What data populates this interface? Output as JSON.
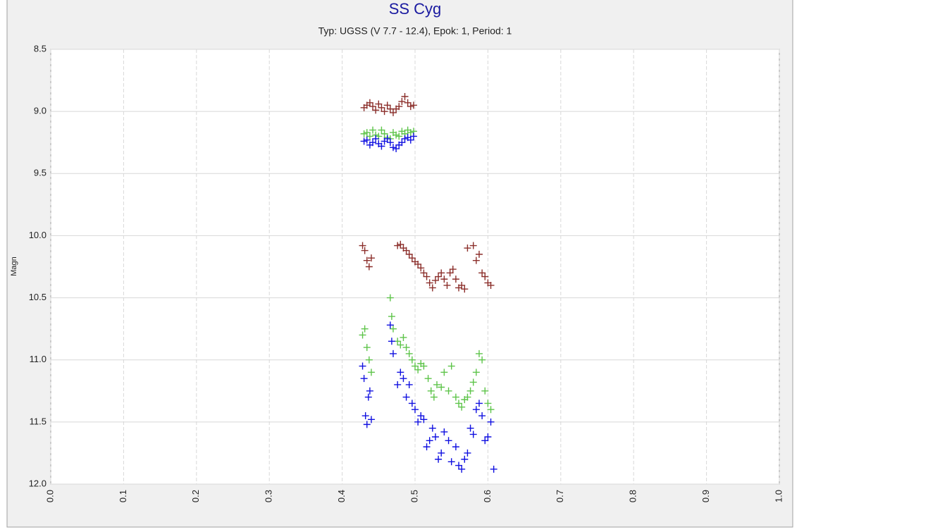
{
  "chart_data": {
    "type": "scatter",
    "title": "SS Cyg",
    "subtitle": "Typ: UGSS (V 7.7 - 12.4), Epok: 1, Period: 1",
    "y_label": "Magn",
    "xlim": [
      0,
      1
    ],
    "xticks": [
      {
        "value": 0,
        "label": "0.0"
      },
      0.1,
      0.2,
      0.3,
      0.4,
      0.5,
      0.6,
      0.7,
      0.8,
      0.9,
      {
        "value": 1,
        "label": "1.0"
      }
    ],
    "ylim": [
      12,
      8.5
    ],
    "yticks": [
      8.5,
      {
        "value": 9,
        "label": "9.0"
      },
      9.5,
      {
        "value": 10,
        "label": "10.0"
      },
      10.5,
      {
        "value": 11,
        "label": "11.0"
      },
      11.5,
      {
        "value": 12,
        "label": "12.0"
      }
    ],
    "grid": true,
    "marker": "plus",
    "series": [
      {
        "color": "#8b2e2a",
        "x": [
          0.43,
          0.434,
          0.438,
          0.442,
          0.446,
          0.45,
          0.454,
          0.458,
          0.462,
          0.466,
          0.47,
          0.474,
          0.478,
          0.482,
          0.486,
          0.49,
          0.494,
          0.498,
          0.428,
          0.431,
          0.434,
          0.437,
          0.44,
          0.476,
          0.48,
          0.484,
          0.488,
          0.492,
          0.496,
          0.5,
          0.504,
          0.508,
          0.512,
          0.516,
          0.52,
          0.524,
          0.528,
          0.532,
          0.536,
          0.54,
          0.544,
          0.548,
          0.552,
          0.556,
          0.56,
          0.564,
          0.568,
          0.572,
          0.58,
          0.584,
          0.588,
          0.592,
          0.596,
          0.6,
          0.604
        ],
        "values": [
          8.97,
          8.95,
          8.93,
          8.96,
          8.99,
          8.94,
          8.97,
          9.0,
          8.95,
          8.98,
          9.01,
          8.98,
          8.96,
          8.92,
          8.88,
          8.93,
          8.96,
          8.95,
          10.08,
          10.12,
          10.2,
          10.25,
          10.18,
          10.08,
          10.07,
          10.1,
          10.12,
          10.15,
          10.18,
          10.21,
          10.23,
          10.26,
          10.3,
          10.33,
          10.38,
          10.42,
          10.36,
          10.33,
          10.3,
          10.35,
          10.4,
          10.3,
          10.27,
          10.35,
          10.42,
          10.4,
          10.43,
          10.1,
          10.08,
          10.2,
          10.15,
          10.3,
          10.33,
          10.38,
          10.4
        ]
      },
      {
        "color": "#5ec44a",
        "x": [
          0.43,
          0.434,
          0.438,
          0.442,
          0.446,
          0.45,
          0.454,
          0.458,
          0.462,
          0.466,
          0.47,
          0.474,
          0.478,
          0.482,
          0.486,
          0.49,
          0.494,
          0.498,
          0.428,
          0.431,
          0.434,
          0.437,
          0.44,
          0.466,
          0.468,
          0.47,
          0.476,
          0.48,
          0.484,
          0.488,
          0.492,
          0.496,
          0.5,
          0.504,
          0.508,
          0.512,
          0.518,
          0.522,
          0.526,
          0.53,
          0.536,
          0.54,
          0.546,
          0.55,
          0.556,
          0.56,
          0.564,
          0.568,
          0.572,
          0.576,
          0.58,
          0.584,
          0.588,
          0.592,
          0.596,
          0.6,
          0.604
        ],
        "values": [
          9.18,
          9.17,
          9.2,
          9.15,
          9.19,
          9.2,
          9.15,
          9.18,
          9.21,
          9.22,
          9.17,
          9.19,
          9.2,
          9.16,
          9.18,
          9.15,
          9.17,
          9.16,
          10.8,
          10.75,
          10.9,
          11.0,
          11.1,
          10.5,
          10.65,
          10.75,
          10.85,
          10.88,
          10.82,
          10.9,
          10.95,
          11.0,
          11.05,
          11.08,
          11.03,
          11.05,
          11.15,
          11.25,
          11.3,
          11.2,
          11.22,
          11.1,
          11.25,
          11.05,
          11.3,
          11.35,
          11.38,
          11.32,
          11.3,
          11.25,
          11.18,
          11.1,
          10.95,
          11.0,
          11.25,
          11.35,
          11.4
        ]
      },
      {
        "color": "#1010e0",
        "x": [
          0.43,
          0.434,
          0.438,
          0.442,
          0.446,
          0.45,
          0.454,
          0.458,
          0.462,
          0.466,
          0.47,
          0.474,
          0.478,
          0.482,
          0.486,
          0.49,
          0.494,
          0.498,
          0.428,
          0.43,
          0.432,
          0.434,
          0.436,
          0.438,
          0.44,
          0.466,
          0.468,
          0.47,
          0.476,
          0.48,
          0.484,
          0.488,
          0.492,
          0.496,
          0.5,
          0.504,
          0.508,
          0.512,
          0.516,
          0.52,
          0.524,
          0.528,
          0.532,
          0.536,
          0.54,
          0.546,
          0.55,
          0.556,
          0.56,
          0.564,
          0.568,
          0.572,
          0.576,
          0.58,
          0.584,
          0.588,
          0.592,
          0.596,
          0.6,
          0.604,
          0.608
        ],
        "values": [
          9.24,
          9.23,
          9.27,
          9.25,
          9.22,
          9.26,
          9.28,
          9.24,
          9.22,
          9.25,
          9.29,
          9.3,
          9.27,
          9.25,
          9.22,
          9.21,
          9.23,
          9.2,
          11.05,
          11.15,
          11.45,
          11.52,
          11.3,
          11.25,
          11.48,
          10.72,
          10.85,
          10.95,
          11.2,
          11.1,
          11.15,
          11.3,
          11.2,
          11.35,
          11.4,
          11.5,
          11.45,
          11.48,
          11.7,
          11.65,
          11.55,
          11.62,
          11.8,
          11.75,
          11.58,
          11.65,
          11.82,
          11.7,
          11.85,
          11.88,
          11.8,
          11.75,
          11.55,
          11.6,
          11.4,
          11.35,
          11.45,
          11.65,
          11.62,
          11.5,
          11.88
        ]
      }
    ]
  }
}
